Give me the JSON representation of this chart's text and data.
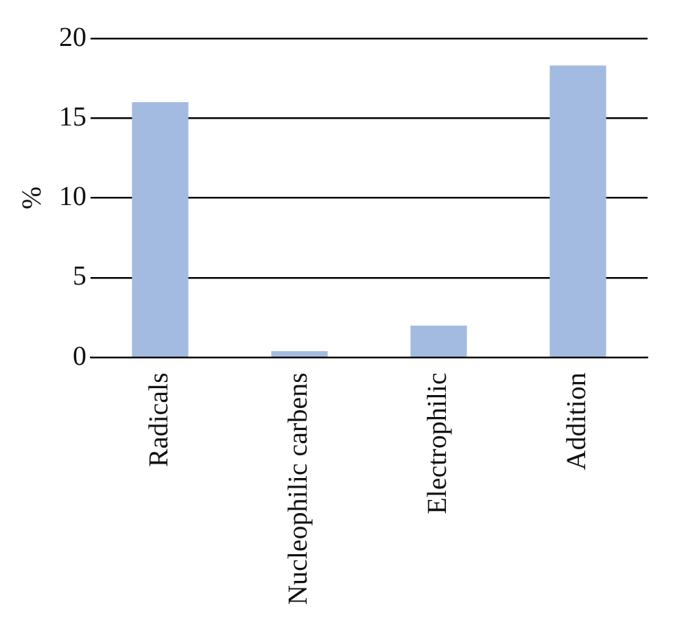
{
  "chart_data": {
    "type": "bar",
    "ylabel": "%",
    "categories": [
      "Radicals",
      "Nucleophilic carbens",
      "Electrophilic",
      "Addition"
    ],
    "values": [
      16,
      0.4,
      2,
      18.3
    ],
    "color": "#a3bbe0",
    "ylim": [
      0,
      20
    ],
    "yticks": [
      0,
      5,
      10,
      15,
      20
    ],
    "grid": "y"
  }
}
